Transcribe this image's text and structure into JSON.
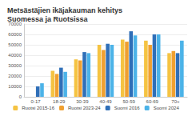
{
  "chart_data": {
    "type": "bar",
    "title": "Metsästäjien ikäjakauman kehitys Suomessa ja Ruotsissa",
    "categories": [
      "0-17",
      "18-29",
      "30-39",
      "40-49",
      "50-59",
      "60-69",
      "70+"
    ],
    "series": [
      {
        "name": "Ruotsi 2015-16",
        "color": "#f5c342",
        "values": [
          null,
          25000,
          36000,
          50000,
          55000,
          54000,
          42000
        ]
      },
      {
        "name": "Ruotsi 2023-24",
        "color": "#f0a030",
        "values": [
          null,
          22000,
          35000,
          45000,
          53000,
          50000,
          44000
        ]
      },
      {
        "name": "Suomi 2016",
        "color": "#2f6fb8",
        "values": [
          10000,
          28000,
          43000,
          51000,
          63000,
          60000,
          42000
        ]
      },
      {
        "name": "Suomi 2024",
        "color": "#4cb3e8",
        "values": [
          13000,
          24000,
          42000,
          50000,
          59000,
          60000,
          54000
        ]
      }
    ],
    "ylim": [
      0,
      70000
    ],
    "yticks": [
      0,
      10000,
      20000,
      30000,
      40000,
      50000,
      60000,
      70000
    ],
    "grid": true,
    "legend": "bottom"
  }
}
